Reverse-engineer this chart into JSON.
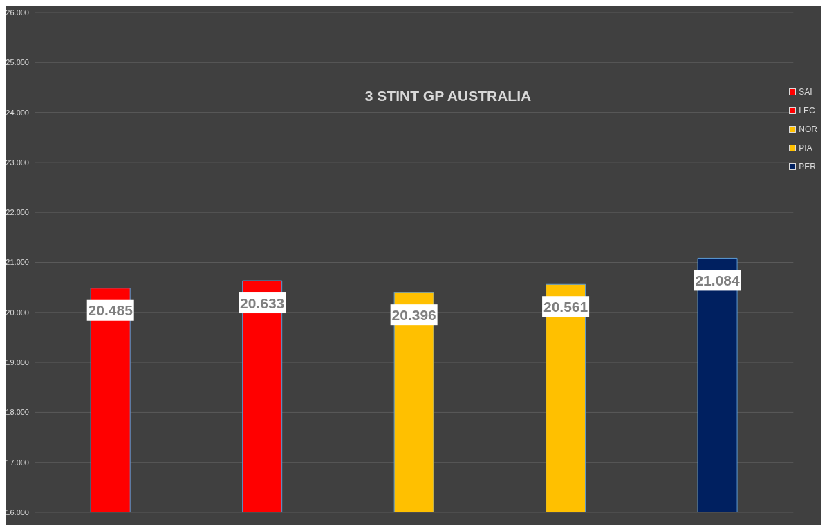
{
  "chart_data": {
    "type": "bar",
    "title": "3 STINT GP AUSTRALIA",
    "categories": [
      null,
      null,
      null,
      null,
      null
    ],
    "series": [
      {
        "name": "SAI",
        "color": "#ff0000",
        "values": [
          20.485,
          null,
          null,
          null,
          null
        ]
      },
      {
        "name": "LEC",
        "color": "#ff0000",
        "values": [
          null,
          20.633,
          null,
          null,
          null
        ]
      },
      {
        "name": "NOR",
        "color": "#ffc000",
        "values": [
          null,
          null,
          20.396,
          null,
          null
        ]
      },
      {
        "name": "PIA",
        "color": "#ffc000",
        "values": [
          null,
          null,
          null,
          20.561,
          null
        ]
      },
      {
        "name": "PER",
        "color": "#002060",
        "values": [
          null,
          null,
          null,
          null,
          21.084
        ]
      }
    ],
    "ylim": [
      16,
      26
    ],
    "yticks": [
      {
        "value": 16,
        "label": "16.000"
      },
      {
        "value": 17,
        "label": "17.000"
      },
      {
        "value": 18,
        "label": "18.000"
      },
      {
        "value": 19,
        "label": "19.000"
      },
      {
        "value": 20,
        "label": "20.000"
      },
      {
        "value": 21,
        "label": "21.000"
      },
      {
        "value": 22,
        "label": "22.000"
      },
      {
        "value": 23,
        "label": "23.000"
      },
      {
        "value": 24,
        "label": "24.000"
      },
      {
        "value": 25,
        "label": "25.000"
      },
      {
        "value": 26,
        "label": "26.000"
      }
    ],
    "grid": "y",
    "legend": "right",
    "tick_labels": "y",
    "data_labels": true
  }
}
